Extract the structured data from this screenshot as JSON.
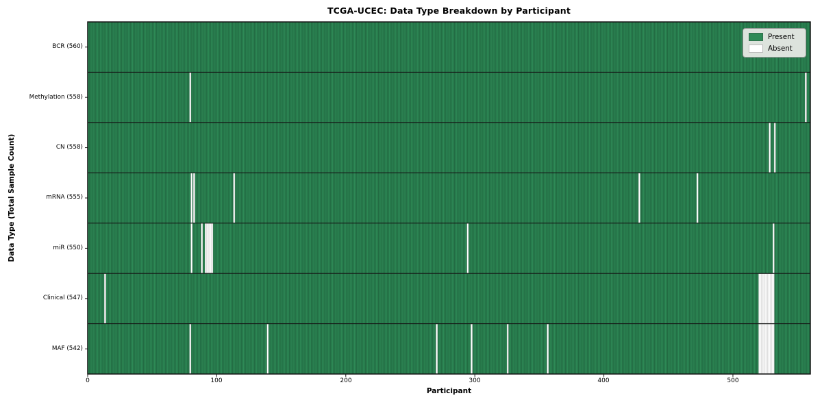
{
  "chart_data": {
    "type": "heatmap",
    "title": "TCGA-UCEC: Data Type Breakdown by Participant",
    "xlabel": "Participant",
    "ylabel": "Data Type (Total Sample Count)",
    "n_participants": 560,
    "x_ticks": [
      0,
      100,
      200,
      300,
      400,
      500
    ],
    "legend": {
      "position": "upper right",
      "entries": [
        {
          "label": "Present",
          "color": "#2e8b57"
        },
        {
          "label": "Absent",
          "color": "#ffffff"
        }
      ]
    },
    "colors": {
      "present": "#2e8b57",
      "present_edge": "rgba(8,40,24,0.55)",
      "absent": "#ffffff",
      "absent_edge": "#b0b0b0",
      "row_divider": "#141414",
      "plot_border": "#141414",
      "legend_bg": "#dde3dd",
      "legend_border": "#9a9a9a"
    },
    "rows": [
      {
        "label": "BCR",
        "count": 560,
        "display": "BCR (560)",
        "absent_participants": []
      },
      {
        "label": "Methylation",
        "count": 558,
        "display": "Methylation (558)",
        "absent_participants": [
          79,
          556
        ]
      },
      {
        "label": "CN",
        "count": 558,
        "display": "CN (558)",
        "absent_participants": [
          528,
          532
        ]
      },
      {
        "label": "mRNA",
        "count": 555,
        "display": "mRNA (555)",
        "absent_participants": [
          80,
          82,
          113,
          427,
          472
        ]
      },
      {
        "label": "miR",
        "count": 550,
        "display": "miR (550)",
        "absent_participants": [
          80,
          88,
          91,
          92,
          93,
          94,
          95,
          96,
          294,
          531
        ]
      },
      {
        "label": "Clinical",
        "count": 547,
        "display": "Clinical (547)",
        "absent_participants": [
          13,
          520,
          521,
          522,
          523,
          524,
          525,
          526,
          527,
          528,
          529,
          530,
          531
        ]
      },
      {
        "label": "MAF",
        "count": 542,
        "display": "MAF (542)",
        "absent_participants": [
          79,
          139,
          270,
          297,
          325,
          356,
          520,
          521,
          522,
          523,
          524,
          525,
          526,
          527,
          528,
          529,
          530,
          531
        ]
      }
    ]
  }
}
